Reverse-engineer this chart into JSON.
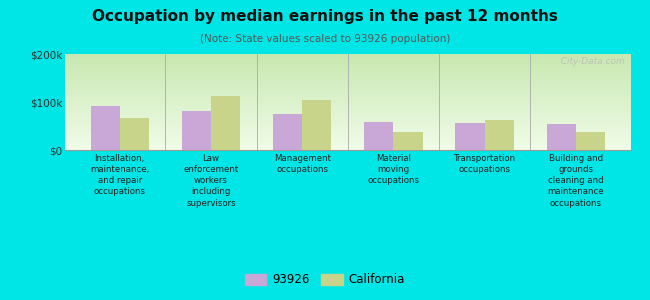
{
  "title": "Occupation by median earnings in the past 12 months",
  "subtitle": "(Note: State values scaled to 93926 population)",
  "categories": [
    "Installation,\nmaintenance,\nand repair\noccupations",
    "Law\nenforcement\nworkers\nincluding\nsupervisors",
    "Management\noccupations",
    "Material\nmoving\noccupations",
    "Transportation\noccupations",
    "Building and\ngrounds\ncleaning and\nmaintenance\noccupations"
  ],
  "values_93926": [
    92000,
    82000,
    76000,
    58000,
    57000,
    55000
  ],
  "values_california": [
    67000,
    112000,
    105000,
    38000,
    62000,
    37000
  ],
  "color_93926": "#c9a8d8",
  "color_california": "#c8d48a",
  "ylim": [
    0,
    200000
  ],
  "ytick_labels": [
    "$0",
    "$100k",
    "$200k"
  ],
  "ytick_values": [
    0,
    100000,
    200000
  ],
  "background_color": "#00e5e5",
  "legend_labels": [
    "93926",
    "California"
  ],
  "watermark": "  City-Data.com",
  "bar_width": 0.32,
  "grad_top_color": "#c8e8b0",
  "grad_bottom_color": "#f0fce8"
}
